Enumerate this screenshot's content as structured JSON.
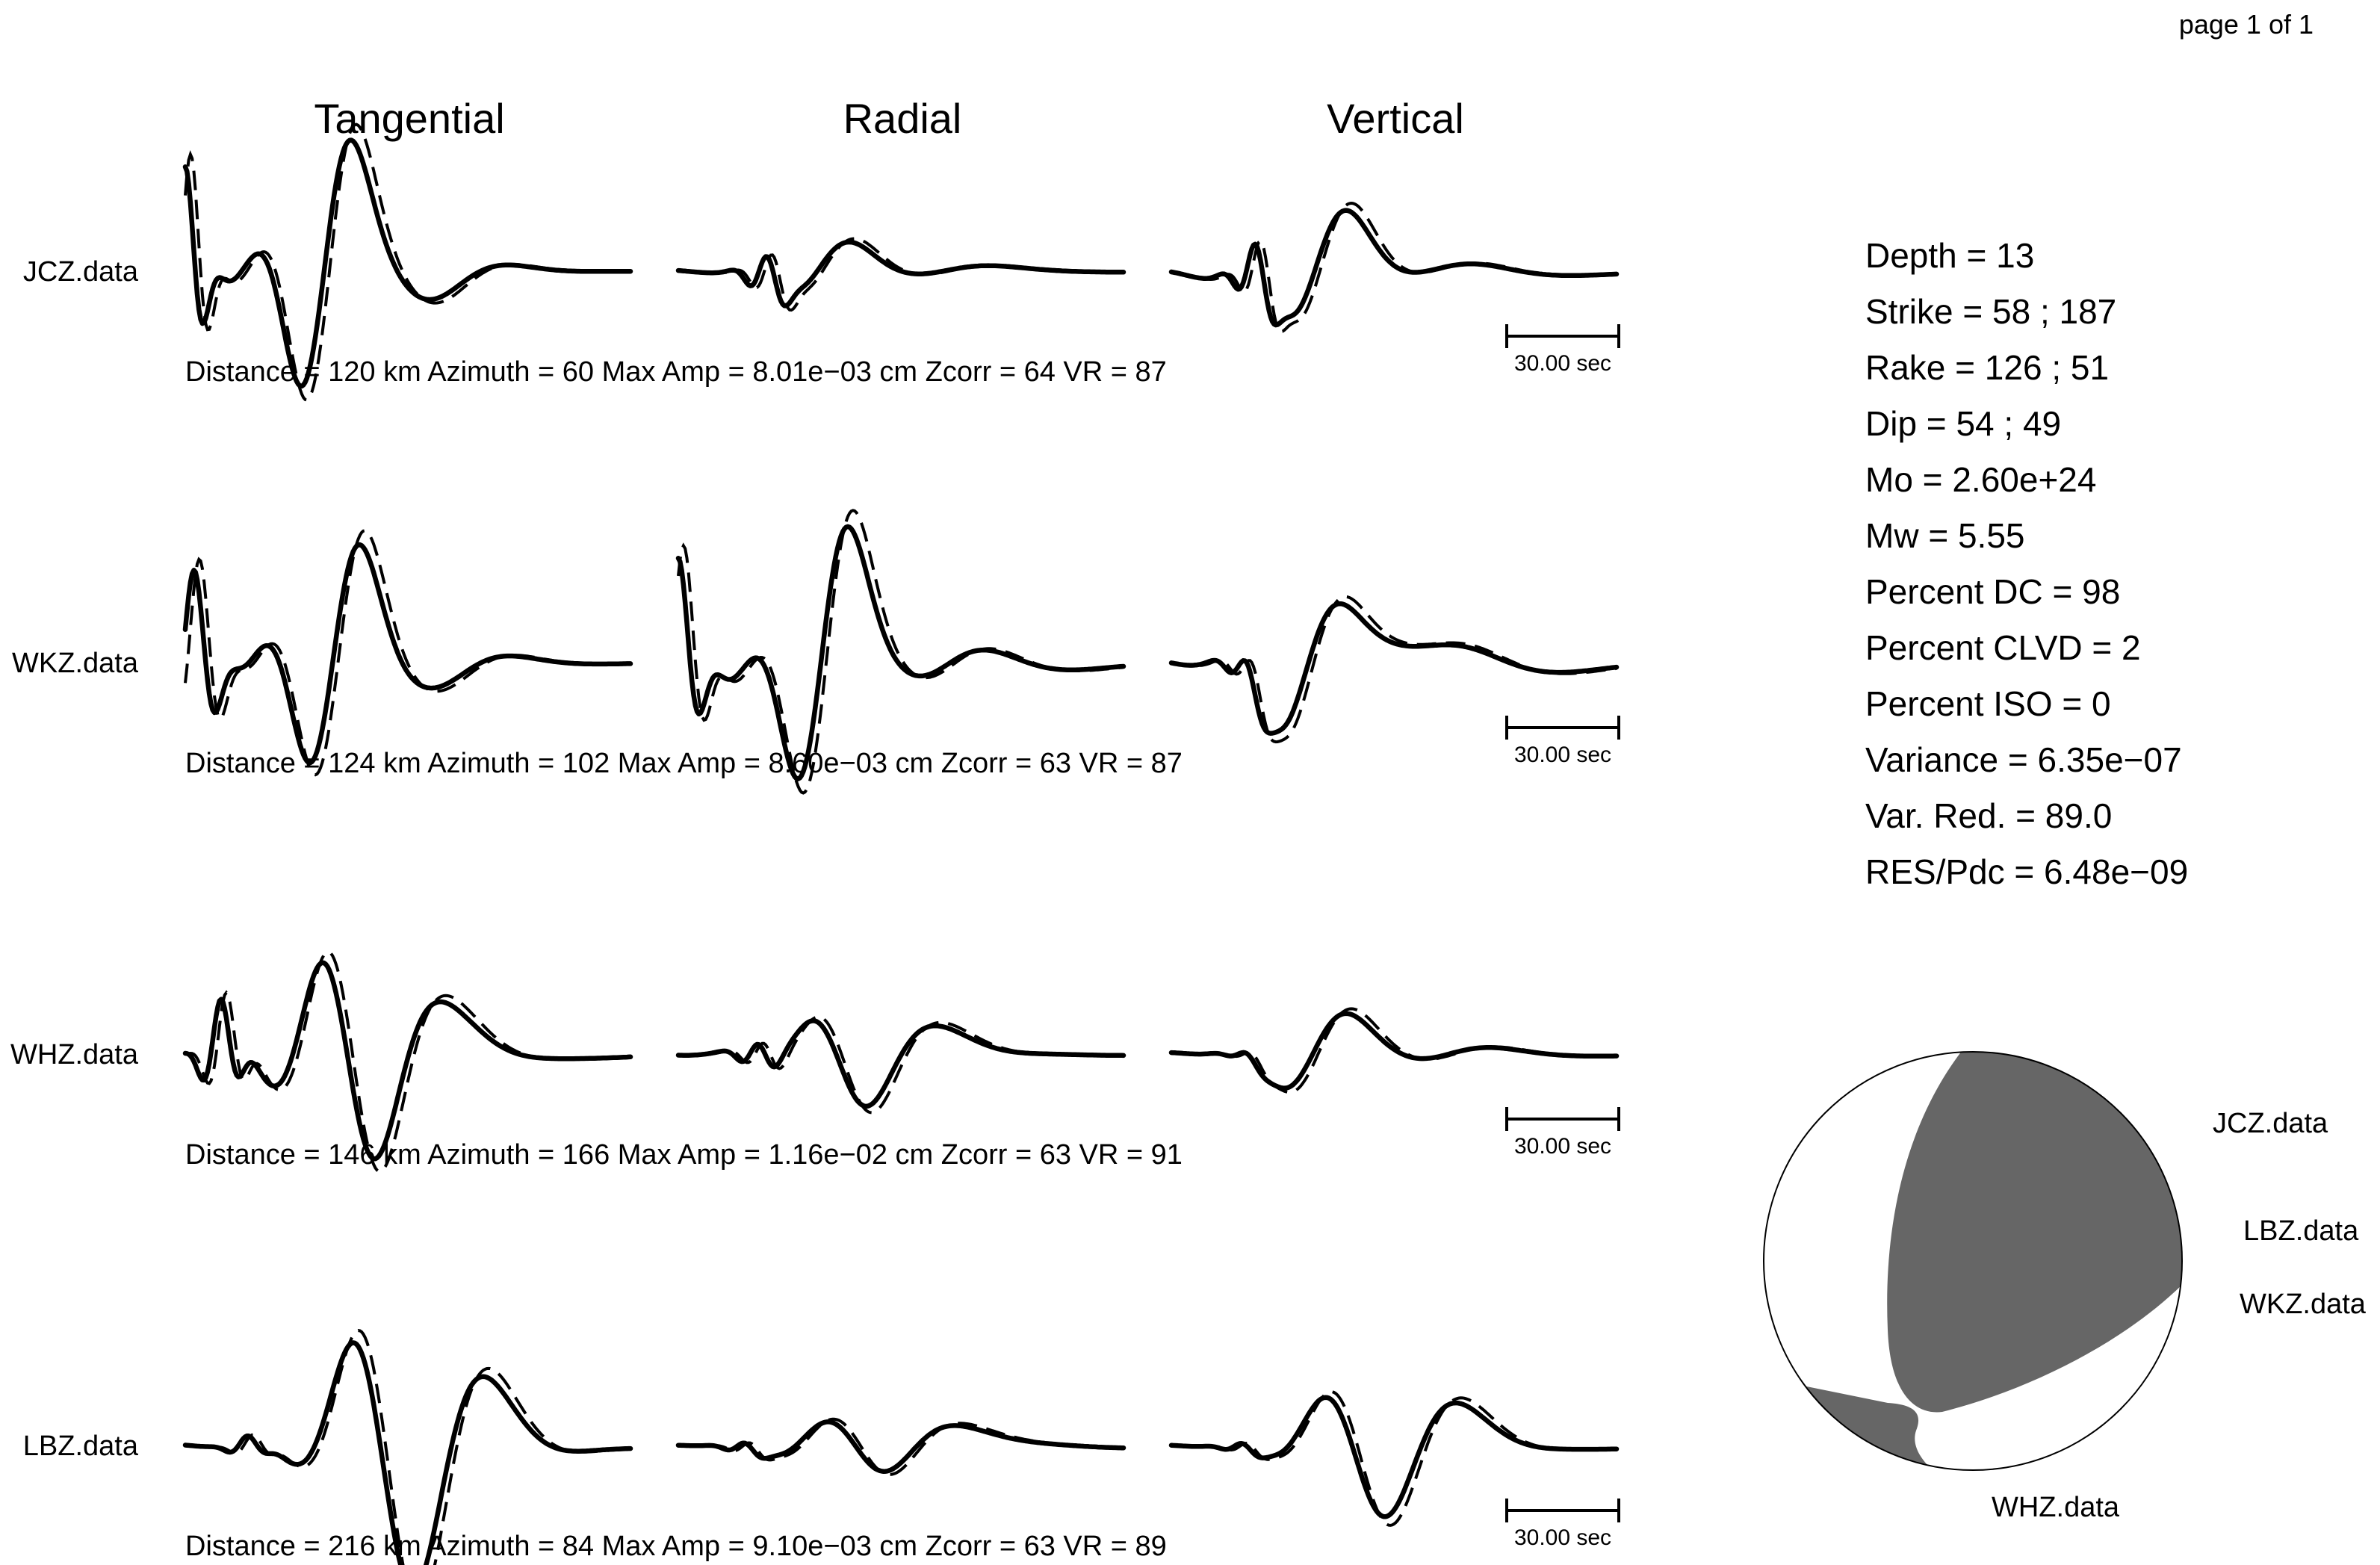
{
  "page_label": "page 1 of 1",
  "components": [
    "Tangential",
    "Radial",
    "Vertical"
  ],
  "stations": [
    {
      "name": "JCZ.data",
      "info": "Distance = 120 km  Azimuth = 60  Max Amp = 8.01e−03 cm  Zcorr = 64  VR = 87",
      "scale_label": "30.00 sec",
      "traces": {
        "tangential": [
          [
            0.3,
            0.0,
            0.9
          ],
          [
            0.78,
            0.27,
            -1.0
          ],
          [
            1.4,
            0.37,
            0.66
          ],
          [
            2.4,
            0.5,
            0.06
          ],
          [
            3.4,
            0.72,
            0.03
          ]
        ],
        "radial": [
          [
            0.3,
            0.2,
            0.23
          ],
          [
            0.9,
            0.27,
            -0.17
          ],
          [
            1.4,
            0.37,
            0.17
          ],
          [
            2.6,
            0.53,
            0.05
          ],
          [
            3.2,
            0.74,
            0.03
          ]
        ],
        "vertical": [
          [
            0.3,
            0.19,
            0.32
          ],
          [
            0.9,
            0.28,
            -0.4
          ],
          [
            1.4,
            0.37,
            0.3
          ],
          [
            2.6,
            0.51,
            0.14
          ],
          [
            3.2,
            0.73,
            0.04
          ]
        ]
      }
    },
    {
      "name": "WKZ.data",
      "info": "Distance = 124 km  Azimuth = 102  Max Amp = 8.60e−03 cm  Zcorr = 63  VR = 87",
      "scale_label": "30.00 sec",
      "traces": {
        "tangential": [
          [
            0.35,
            0.02,
            0.8
          ],
          [
            0.8,
            0.29,
            -0.94
          ],
          [
            1.4,
            0.38,
            0.59
          ],
          [
            2.5,
            0.55,
            0.06
          ],
          [
            3.4,
            0.74,
            0.02
          ]
        ],
        "radial": [
          [
            0.35,
            0.0,
            0.88
          ],
          [
            0.78,
            0.28,
            -1.0
          ],
          [
            1.4,
            0.37,
            0.73
          ],
          [
            2.3,
            0.54,
            0.22
          ],
          [
            3.1,
            0.72,
            0.06
          ]
        ],
        "vertical": [
          [
            0.3,
            0.17,
            0.18
          ],
          [
            0.9,
            0.25,
            -0.4
          ],
          [
            1.4,
            0.37,
            0.3
          ],
          [
            2.4,
            0.53,
            0.27
          ],
          [
            3.3,
            0.72,
            0.06
          ]
        ]
      }
    },
    {
      "name": "WHZ.data",
      "info": "Distance = 146 km  Azimuth = 166  Max Amp = 1.16e−02 cm  Zcorr = 63  VR = 91",
      "scale_label": "30.00 sec",
      "traces": {
        "tangential": [
          [
            0.3,
            0.08,
            0.46
          ],
          [
            0.9,
            0.32,
            1.0
          ],
          [
            1.4,
            0.4,
            -0.57
          ],
          [
            2.5,
            0.55,
            0.12
          ],
          [
            3.3,
            0.73,
            0.03
          ]
        ],
        "radial": [
          [
            0.3,
            0.18,
            0.14
          ],
          [
            0.9,
            0.32,
            0.39
          ],
          [
            1.4,
            0.4,
            -0.33
          ],
          [
            2.6,
            0.56,
            0.05
          ],
          [
            3.3,
            0.73,
            0.03
          ]
        ],
        "vertical": [
          [
            0.3,
            0.17,
            0.05
          ],
          [
            0.9,
            0.27,
            -0.2
          ],
          [
            1.4,
            0.39,
            0.26
          ],
          [
            2.5,
            0.56,
            0.07
          ],
          [
            3.2,
            0.73,
            0.03
          ]
        ]
      }
    },
    {
      "name": "LBZ.data",
      "info": "Distance = 216 km  Azimuth = 84  Max Amp = 9.10e−03 cm  Zcorr = 63  VR = 89",
      "scale_label": "30.00 sec",
      "traces": {
        "tangential": [
          [
            0.3,
            0.14,
            0.09
          ],
          [
            1.0,
            0.4,
            0.98
          ],
          [
            1.4,
            0.49,
            -0.96
          ],
          [
            2.6,
            0.63,
            0.07
          ],
          [
            3.3,
            0.76,
            0.02
          ]
        ],
        "radial": [
          [
            0.3,
            0.15,
            0.06
          ],
          [
            1.0,
            0.35,
            0.25
          ],
          [
            1.4,
            0.44,
            -0.16
          ],
          [
            2.8,
            0.6,
            0.06
          ],
          [
            3.3,
            0.75,
            0.03
          ]
        ],
        "vertical": [
          [
            0.3,
            0.16,
            0.05
          ],
          [
            1.0,
            0.37,
            0.48
          ],
          [
            1.4,
            0.46,
            -0.5
          ],
          [
            2.6,
            0.61,
            0.09
          ],
          [
            3.3,
            0.76,
            0.02
          ]
        ]
      }
    }
  ],
  "parameters": [
    "Depth = 13",
    "Strike = 58 ; 187",
    "Rake = 126 ; 51",
    "Dip = 54 ; 49",
    "Mo = 2.60e+24",
    "Mw = 5.55",
    "Percent DC = 98",
    "Percent CLVD = 2",
    "Percent ISO = 0",
    "Variance = 6.35e−07",
    "Var. Red. = 89.0",
    "RES/Pdc = 6.48e−09"
  ],
  "beachball": {
    "compression_color": "#666666",
    "dilatation_color": "#ffffff",
    "station_labels": [
      "JCZ.data",
      "LBZ.data",
      "WKZ.data",
      "WHZ.data"
    ]
  },
  "chart_data": {
    "type": "line",
    "title": "",
    "columns": [
      "Tangential",
      "Radial",
      "Vertical"
    ],
    "rows": [
      "JCZ.data",
      "WKZ.data",
      "WHZ.data",
      "LBZ.data"
    ],
    "series": [
      {
        "name": "",
        "style": "solid"
      },
      {
        "name": "",
        "style": "dashed"
      }
    ],
    "time_scale": "30.00 sec",
    "values_note": "normalized waveform shape per trace: [period_fraction, center_fraction, amplitude]"
  }
}
